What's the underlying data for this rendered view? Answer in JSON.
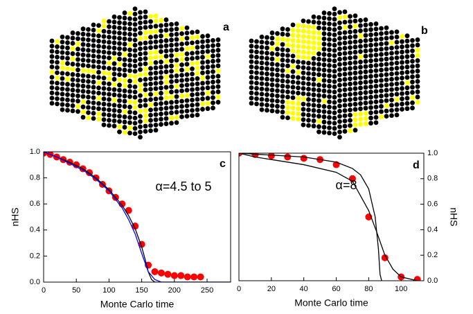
{
  "lattice_panels": [
    {
      "label": "a"
    },
    {
      "label": "b"
    }
  ],
  "chart_data": [
    {
      "type": "line",
      "panel_label": "c",
      "annotation": "α=4.5 to 5",
      "xlabel": "Monte Carlo time",
      "ylabel": "nHS",
      "y_axis_position": "left",
      "xlim": [
        0,
        286
      ],
      "ylim": [
        0,
        1
      ],
      "xticks": [
        0,
        50,
        100,
        150,
        200,
        250
      ],
      "yticks": [
        {
          "value": 0,
          "label": "0.0"
        },
        {
          "value": 0.2,
          "label": "0.2"
        },
        {
          "value": 0.4,
          "label": "0.4"
        },
        {
          "value": 0.6,
          "label": "0.6"
        },
        {
          "value": 0.8,
          "label": "0.8"
        },
        {
          "value": 1,
          "label": "1.0"
        }
      ],
      "series": [
        {
          "style": "markers",
          "color": "#ff0000",
          "x": [
            0,
            10,
            20,
            30,
            40,
            50,
            60,
            70,
            80,
            90,
            100,
            110,
            120,
            130,
            140,
            150,
            160,
            170,
            180,
            190,
            200,
            210,
            220,
            230,
            240
          ],
          "values": [
            0.99,
            0.98,
            0.96,
            0.94,
            0.92,
            0.9,
            0.87,
            0.84,
            0.8,
            0.75,
            0.7,
            0.65,
            0.6,
            0.55,
            0.43,
            0.29,
            0.13,
            0.08,
            0.07,
            0.06,
            0.05,
            0.05,
            0.04,
            0.04,
            0.04
          ]
        },
        {
          "style": "line",
          "color": "#000000",
          "x": [
            0,
            20,
            40,
            60,
            80,
            100,
            120,
            130,
            140,
            150,
            155,
            160,
            165,
            170,
            286
          ],
          "values": [
            1,
            0.96,
            0.92,
            0.87,
            0.8,
            0.71,
            0.59,
            0.51,
            0.41,
            0.27,
            0.18,
            0.08,
            0.02,
            0,
            0
          ]
        },
        {
          "style": "line",
          "color": "#0000ff",
          "x": [
            0,
            20,
            40,
            60,
            80,
            100,
            120,
            130,
            140,
            150,
            160,
            170,
            180,
            200,
            286
          ],
          "values": [
            1,
            0.96,
            0.91,
            0.86,
            0.79,
            0.7,
            0.57,
            0.48,
            0.37,
            0.22,
            0.08,
            0.02,
            0,
            0,
            0
          ]
        }
      ]
    },
    {
      "type": "line",
      "panel_label": "d",
      "annotation": "α=8",
      "xlabel": "Monte Carlo time",
      "ylabel": "nHS",
      "y_axis_position": "right",
      "xlim": [
        0,
        114
      ],
      "ylim": [
        0,
        1
      ],
      "xticks": [
        0,
        20,
        40,
        60,
        80,
        100
      ],
      "yticks": [
        {
          "value": 0,
          "label": "0.0"
        },
        {
          "value": 0.2,
          "label": "0.2"
        },
        {
          "value": 0.4,
          "label": "0.4"
        },
        {
          "value": 0.6,
          "label": "0.6"
        },
        {
          "value": 0.8,
          "label": "0.8"
        },
        {
          "value": 1,
          "label": "1.0"
        }
      ],
      "series": [
        {
          "style": "markers",
          "color": "#ff0000",
          "x": [
            0,
            10,
            20,
            30,
            40,
            50,
            60,
            70,
            80,
            90,
            100,
            110
          ],
          "values": [
            1,
            0.99,
            0.98,
            0.97,
            0.96,
            0.95,
            0.91,
            0.8,
            0.5,
            0.18,
            0.03,
            0.01
          ]
        },
        {
          "style": "line",
          "color": "#000000",
          "x": [
            0,
            40,
            60,
            70,
            75,
            80,
            84,
            86,
            87,
            88
          ],
          "values": [
            1,
            0.97,
            0.93,
            0.88,
            0.83,
            0.72,
            0.5,
            0.25,
            0.05,
            0
          ]
        },
        {
          "style": "line",
          "color": "#000000",
          "x": [
            0,
            10,
            20,
            40,
            60,
            70,
            80,
            85,
            90,
            95,
            100,
            110
          ],
          "values": [
            1,
            0.97,
            0.95,
            0.91,
            0.85,
            0.78,
            0.55,
            0.38,
            0.2,
            0.09,
            0.03,
            0
          ]
        }
      ]
    }
  ]
}
